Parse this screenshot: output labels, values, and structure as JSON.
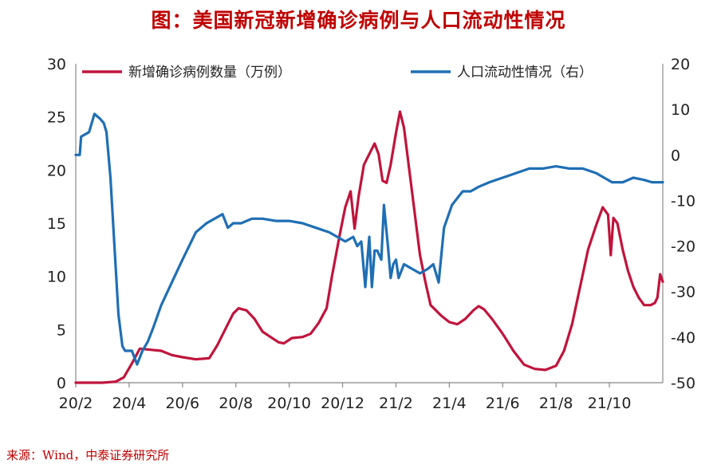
{
  "title": "图：美国新冠新增确诊病例与人口流动性情况",
  "source": "来源：Wind，中泰证券研究所",
  "chart_data": {
    "type": "line",
    "x_ticks": [
      "20/2",
      "20/4",
      "20/6",
      "20/8",
      "20/10",
      "20/12",
      "21/2",
      "21/4",
      "21/6",
      "21/8",
      "21/10"
    ],
    "y_left": {
      "min": 0,
      "max": 30,
      "ticks": [
        0,
        5,
        10,
        15,
        20,
        25,
        30
      ]
    },
    "y_right": {
      "min": -50,
      "max": 20,
      "ticks": [
        -50,
        -40,
        -30,
        -20,
        -10,
        0,
        10,
        20
      ]
    },
    "x_range": [
      0,
      21.4
    ],
    "series": [
      {
        "name": "新增确诊病例数量（万例）",
        "axis": "left",
        "color": "#c0143c",
        "points": [
          [
            0,
            0
          ],
          [
            0.5,
            0
          ],
          [
            1,
            0
          ],
          [
            1.5,
            0.1
          ],
          [
            1.8,
            0.5
          ],
          [
            2.1,
            1.8
          ],
          [
            2.4,
            3.2
          ],
          [
            2.8,
            3.1
          ],
          [
            3.2,
            3.0
          ],
          [
            3.6,
            2.6
          ],
          [
            4,
            2.4
          ],
          [
            4.5,
            2.2
          ],
          [
            5,
            2.3
          ],
          [
            5.3,
            3.5
          ],
          [
            5.6,
            5.0
          ],
          [
            5.9,
            6.5
          ],
          [
            6.1,
            7.0
          ],
          [
            6.4,
            6.8
          ],
          [
            6.7,
            6.0
          ],
          [
            7,
            4.8
          ],
          [
            7.3,
            4.3
          ],
          [
            7.6,
            3.8
          ],
          [
            7.8,
            3.7
          ],
          [
            8.1,
            4.2
          ],
          [
            8.5,
            4.3
          ],
          [
            8.8,
            4.6
          ],
          [
            9.1,
            5.6
          ],
          [
            9.4,
            7.0
          ],
          [
            9.6,
            10.0
          ],
          [
            9.9,
            14.0
          ],
          [
            10.1,
            16.5
          ],
          [
            10.3,
            18.0
          ],
          [
            10.45,
            14.5
          ],
          [
            10.6,
            17.5
          ],
          [
            10.8,
            20.5
          ],
          [
            11.0,
            21.5
          ],
          [
            11.2,
            22.5
          ],
          [
            11.35,
            21.5
          ],
          [
            11.5,
            19.0
          ],
          [
            11.65,
            18.8
          ],
          [
            11.8,
            20.5
          ],
          [
            12.0,
            23.5
          ],
          [
            12.15,
            25.5
          ],
          [
            12.3,
            24.0
          ],
          [
            12.5,
            20.0
          ],
          [
            12.7,
            16.0
          ],
          [
            12.9,
            12.0
          ],
          [
            13.1,
            9.5
          ],
          [
            13.3,
            7.3
          ],
          [
            13.5,
            6.8
          ],
          [
            13.7,
            6.3
          ],
          [
            14.0,
            5.7
          ],
          [
            14.3,
            5.5
          ],
          [
            14.6,
            6.0
          ],
          [
            14.9,
            6.8
          ],
          [
            15.1,
            7.2
          ],
          [
            15.3,
            6.9
          ],
          [
            15.6,
            6.0
          ],
          [
            16.0,
            4.6
          ],
          [
            16.4,
            3.0
          ],
          [
            16.8,
            1.7
          ],
          [
            17.2,
            1.3
          ],
          [
            17.6,
            1.2
          ],
          [
            18.0,
            1.6
          ],
          [
            18.3,
            3.0
          ],
          [
            18.6,
            5.5
          ],
          [
            18.9,
            9.0
          ],
          [
            19.2,
            12.5
          ],
          [
            19.5,
            14.8
          ],
          [
            19.75,
            16.5
          ],
          [
            19.95,
            15.8
          ],
          [
            20.05,
            12.0
          ],
          [
            20.15,
            15.5
          ],
          [
            20.3,
            15.0
          ],
          [
            20.5,
            12.5
          ],
          [
            20.7,
            10.5
          ],
          [
            20.9,
            9.0
          ],
          [
            21.1,
            8.0
          ],
          [
            21.3,
            7.3
          ],
          [
            21.55,
            7.3
          ],
          [
            21.7,
            7.5
          ],
          [
            21.8,
            8.0
          ],
          [
            21.9,
            10.2
          ],
          [
            22.0,
            9.5
          ]
        ]
      },
      {
        "name": "人口流动性情况（右）",
        "axis": "right",
        "color": "#1f6fb4",
        "points": [
          [
            0,
            0
          ],
          [
            0.15,
            0
          ],
          [
            0.2,
            4
          ],
          [
            0.5,
            5
          ],
          [
            0.7,
            9
          ],
          [
            0.9,
            8
          ],
          [
            1.05,
            7
          ],
          [
            1.15,
            5
          ],
          [
            1.3,
            -5
          ],
          [
            1.45,
            -20
          ],
          [
            1.6,
            -35
          ],
          [
            1.75,
            -42
          ],
          [
            1.85,
            -43
          ],
          [
            2.1,
            -43
          ],
          [
            2.3,
            -46
          ],
          [
            2.5,
            -43
          ],
          [
            2.7,
            -41
          ],
          [
            2.9,
            -38
          ],
          [
            3.2,
            -33
          ],
          [
            3.6,
            -28
          ],
          [
            4.0,
            -23
          ],
          [
            4.5,
            -17
          ],
          [
            4.9,
            -15
          ],
          [
            5.2,
            -14
          ],
          [
            5.5,
            -13
          ],
          [
            5.7,
            -16
          ],
          [
            5.9,
            -15
          ],
          [
            6.2,
            -15
          ],
          [
            6.6,
            -14
          ],
          [
            7.0,
            -14
          ],
          [
            7.5,
            -14.5
          ],
          [
            8.0,
            -14.5
          ],
          [
            8.5,
            -15
          ],
          [
            9.0,
            -16
          ],
          [
            9.5,
            -17
          ],
          [
            9.8,
            -18
          ],
          [
            10.1,
            -19
          ],
          [
            10.4,
            -18
          ],
          [
            10.55,
            -20
          ],
          [
            10.7,
            -19
          ],
          [
            10.85,
            -29
          ],
          [
            11.0,
            -18
          ],
          [
            11.1,
            -29
          ],
          [
            11.2,
            -21
          ],
          [
            11.3,
            -21
          ],
          [
            11.45,
            -23
          ],
          [
            11.55,
            -11
          ],
          [
            11.7,
            -20
          ],
          [
            11.8,
            -27
          ],
          [
            11.9,
            -24
          ],
          [
            12.0,
            -23
          ],
          [
            12.1,
            -27
          ],
          [
            12.3,
            -24
          ],
          [
            12.6,
            -25
          ],
          [
            12.9,
            -26
          ],
          [
            13.2,
            -25
          ],
          [
            13.4,
            -24
          ],
          [
            13.6,
            -28
          ],
          [
            13.8,
            -16
          ],
          [
            14.1,
            -11
          ],
          [
            14.5,
            -8
          ],
          [
            14.8,
            -8
          ],
          [
            15.1,
            -7
          ],
          [
            15.5,
            -6
          ],
          [
            16.0,
            -5
          ],
          [
            16.5,
            -4
          ],
          [
            17.0,
            -3
          ],
          [
            17.5,
            -3
          ],
          [
            18.0,
            -2.5
          ],
          [
            18.5,
            -3
          ],
          [
            19.0,
            -3
          ],
          [
            19.5,
            -4
          ],
          [
            19.8,
            -5
          ],
          [
            20.1,
            -6
          ],
          [
            20.5,
            -6
          ],
          [
            20.9,
            -5
          ],
          [
            21.3,
            -5.5
          ],
          [
            21.6,
            -6
          ],
          [
            22.0,
            -6
          ]
        ]
      }
    ],
    "legend": "top"
  }
}
